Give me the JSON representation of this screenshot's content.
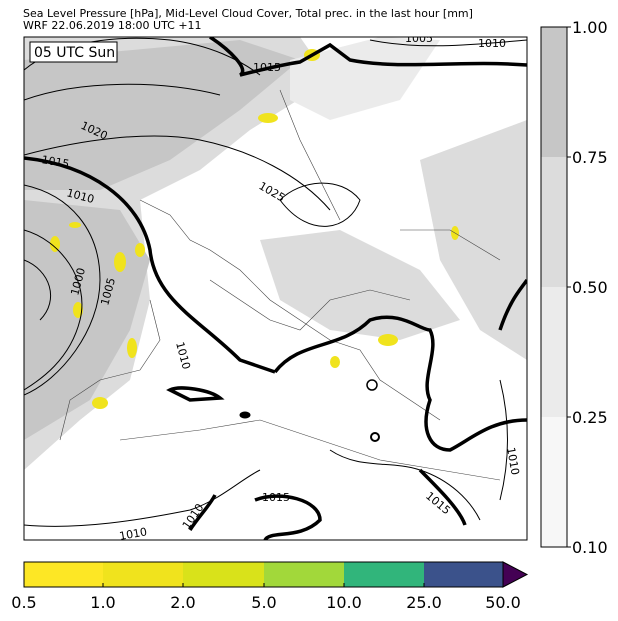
{
  "title": {
    "line1": "Sea Level Pressure [hPa], Mid-Level Cloud Cover, Total prec. in the last hour [mm]",
    "line2": "WRF 22.06.2019 18:00 UTC +11"
  },
  "map": {
    "time_label": "05 UTC Sun",
    "isobar_labels": [
      "1005",
      "1010",
      "1015",
      "1020",
      "1015",
      "1010",
      "1025",
      "1000",
      "1005",
      "1010",
      "1010",
      "1015",
      "1015",
      "1010",
      "1010"
    ]
  },
  "cloud_colorbar": {
    "ticks": [
      "1.00",
      "0.75",
      "0.50",
      "0.25",
      "0.10"
    ],
    "colors": [
      "#c6c6c6",
      "#dcdcdc",
      "#ebebeb",
      "#f7f7f7"
    ]
  },
  "precip_colorbar": {
    "ticks": [
      "0.5",
      "1.0",
      "2.0",
      "5.0",
      "10.0",
      "25.0",
      "50.0"
    ],
    "colors": [
      "#fde725",
      "#f0e31d",
      "#d9e21a",
      "#a2d83a",
      "#31b57b",
      "#3b528b",
      "#440154"
    ]
  }
}
